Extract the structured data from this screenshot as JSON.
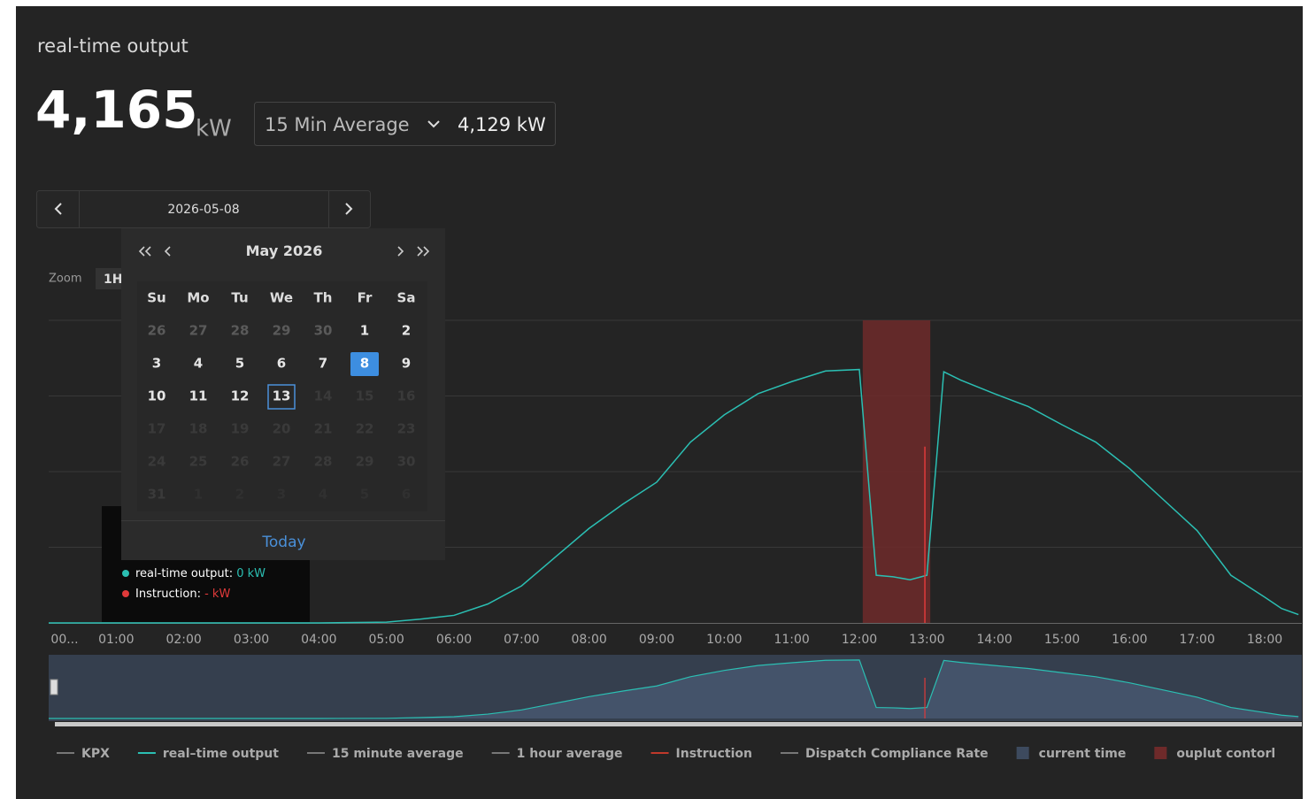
{
  "header": {
    "title": "real-time output",
    "value": "4,165",
    "unit": "kW"
  },
  "average": {
    "selected": "15 Min Average",
    "value": "4,129 kW"
  },
  "date_picker": {
    "date": "2026-05-08"
  },
  "zoom": {
    "label": "Zoom",
    "button": "1H"
  },
  "calendar": {
    "month": "May",
    "year": "2026",
    "weekdays": [
      "Su",
      "Mo",
      "Tu",
      "We",
      "Th",
      "Fr",
      "Sa"
    ],
    "weeks": [
      [
        {
          "day": 26,
          "state": "other"
        },
        {
          "day": 27,
          "state": "other"
        },
        {
          "day": 28,
          "state": "other"
        },
        {
          "day": 29,
          "state": "other"
        },
        {
          "day": 30,
          "state": "other"
        },
        {
          "day": 1,
          "state": "active"
        },
        {
          "day": 2,
          "state": "active"
        }
      ],
      [
        {
          "day": 3,
          "state": "active"
        },
        {
          "day": 4,
          "state": "active"
        },
        {
          "day": 5,
          "state": "active"
        },
        {
          "day": 6,
          "state": "active"
        },
        {
          "day": 7,
          "state": "active"
        },
        {
          "day": 8,
          "state": "selected"
        },
        {
          "day": 9,
          "state": "active"
        }
      ],
      [
        {
          "day": 10,
          "state": "active"
        },
        {
          "day": 11,
          "state": "active"
        },
        {
          "day": 12,
          "state": "active"
        },
        {
          "day": 13,
          "state": "today"
        },
        {
          "day": 14,
          "state": "disabled"
        },
        {
          "day": 15,
          "state": "disabled"
        },
        {
          "day": 16,
          "state": "disabled"
        }
      ],
      [
        {
          "day": 17,
          "state": "disabled"
        },
        {
          "day": 18,
          "state": "disabled"
        },
        {
          "day": 19,
          "state": "disabled"
        },
        {
          "day": 20,
          "state": "disabled"
        },
        {
          "day": 21,
          "state": "disabled"
        },
        {
          "day": 22,
          "state": "disabled"
        },
        {
          "day": 23,
          "state": "disabled"
        }
      ],
      [
        {
          "day": 24,
          "state": "disabled"
        },
        {
          "day": 25,
          "state": "disabled"
        },
        {
          "day": 26,
          "state": "disabled"
        },
        {
          "day": 27,
          "state": "disabled"
        },
        {
          "day": 28,
          "state": "disabled"
        },
        {
          "day": 29,
          "state": "disabled"
        },
        {
          "day": 30,
          "state": "disabled"
        }
      ],
      [
        {
          "day": 31,
          "state": "disabled"
        },
        {
          "day": 1,
          "state": "hidden"
        },
        {
          "day": 2,
          "state": "hidden"
        },
        {
          "day": 3,
          "state": "hidden"
        },
        {
          "day": 4,
          "state": "hidden"
        },
        {
          "day": 5,
          "state": "hidden"
        },
        {
          "day": 6,
          "state": "hidden"
        }
      ]
    ],
    "today_button": "Today"
  },
  "tooltip": {
    "output_label": "real-time output: ",
    "output_value": "0 kW",
    "instruction_label": "Instruction: ",
    "instruction_value": "- kW"
  },
  "chart_data": {
    "type": "line",
    "x": [
      0,
      1,
      2,
      3,
      4,
      5,
      5.5,
      6,
      6.5,
      7,
      7.5,
      8,
      8.5,
      9,
      9.5,
      10,
      10.5,
      11,
      11.5,
      12,
      12.25,
      12.5,
      12.75,
      13,
      13.25,
      13.5,
      14,
      14.5,
      15,
      15.5,
      16,
      16.5,
      17,
      17.5,
      18,
      18.25,
      18.5
    ],
    "series": [
      {
        "name": "real-time output",
        "color": "#2bbfb3",
        "values": [
          0,
          0,
          0,
          0,
          0,
          10,
          50,
          100,
          250,
          490,
          870,
          1250,
          1570,
          1860,
          2390,
          2750,
          3030,
          3190,
          3330,
          3350,
          630,
          610,
          570,
          630,
          3320,
          3210,
          3030,
          2860,
          2620,
          2390,
          2040,
          1630,
          1220,
          630,
          340,
          190,
          110
        ]
      }
    ],
    "xlim": [
      0,
      18.55
    ],
    "ylim": [
      0,
      4000
    ],
    "xticks": [
      {
        "value": 0,
        "label": "00..."
      },
      {
        "value": 1,
        "label": "01:00"
      },
      {
        "value": 2,
        "label": "02:00"
      },
      {
        "value": 3,
        "label": "03:00"
      },
      {
        "value": 4,
        "label": "04:00"
      },
      {
        "value": 5,
        "label": "05:00"
      },
      {
        "value": 6,
        "label": "06:00"
      },
      {
        "value": 7,
        "label": "07:00"
      },
      {
        "value": 8,
        "label": "08:00"
      },
      {
        "value": 9,
        "label": "09:00"
      },
      {
        "value": 10,
        "label": "10:00"
      },
      {
        "value": 11,
        "label": "11:00"
      },
      {
        "value": 12,
        "label": "12:00"
      },
      {
        "value": 13,
        "label": "13:00"
      },
      {
        "value": 14,
        "label": "14:00"
      },
      {
        "value": 15,
        "label": "15:00"
      },
      {
        "value": 16,
        "label": "16:00"
      },
      {
        "value": 17,
        "label": "17:00"
      },
      {
        "value": 18,
        "label": "18:00"
      }
    ],
    "instruction": {
      "x": 12.97,
      "value": 2330,
      "color": "#e03a3a"
    },
    "output_control": {
      "start": 12.05,
      "end": 13.05,
      "color": "#6e2a2a"
    }
  },
  "legend": [
    {
      "name": "KPX",
      "color": "#777777",
      "kind": "line"
    },
    {
      "name": "real–time output",
      "color": "#2bbfb3",
      "kind": "line"
    },
    {
      "name": "15 minute average",
      "color": "#777777",
      "kind": "line"
    },
    {
      "name": "1 hour average",
      "color": "#777777",
      "kind": "line"
    },
    {
      "name": "Instruction",
      "color": "#c0392b",
      "kind": "line"
    },
    {
      "name": "Dispatch Compliance Rate",
      "color": "#777777",
      "kind": "line"
    },
    {
      "name": "current time",
      "color": "#3d4a5e",
      "kind": "square"
    },
    {
      "name": "ouplut contorl",
      "color": "#6e2a2a",
      "kind": "square"
    }
  ]
}
